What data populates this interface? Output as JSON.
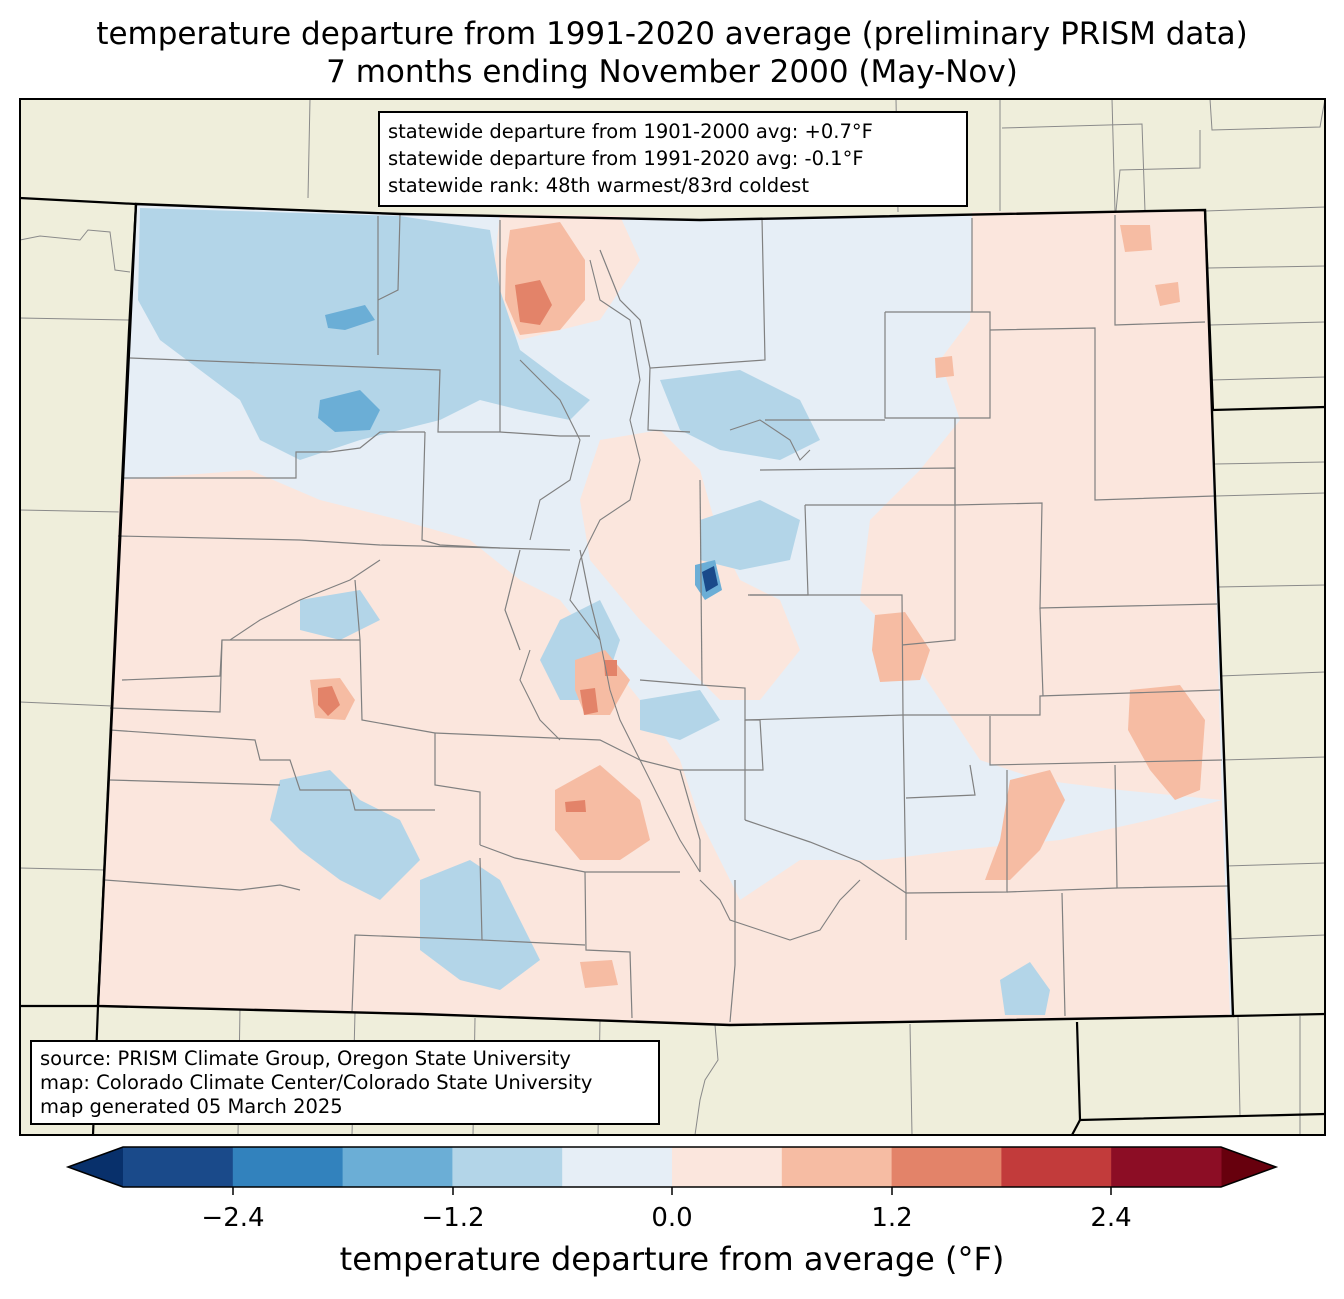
{
  "title": {
    "line1": "temperature departure from 1991-2020 average (preliminary PRISM data)",
    "line2": "7 months ending November 2000 (May-Nov)"
  },
  "stats": {
    "line1": "statewide departure from 1901-2000 avg: +0.7°F",
    "line2": "statewide departure from 1991-2020 avg: -0.1°F",
    "line3": "statewide rank: 48th warmest/83rd coldest"
  },
  "source": {
    "line1": "source: PRISM Climate Group, Oregon State University",
    "line2": "map: Colorado Climate Center/Colorado State University",
    "line3": "map generated 05 March 2025"
  },
  "colorbar": {
    "label": "temperature departure from average (°F)",
    "ticks": [
      "−2.4",
      "−1.2",
      "0.0",
      "1.2",
      "2.4"
    ],
    "bins": [
      "#08306b",
      "#1a4a8a",
      "#3282bd",
      "#6baed6",
      "#b3d5e8",
      "#e6eef6",
      "#fbe6dd",
      "#f6bca3",
      "#e38369",
      "#c23b3b",
      "#8c0d25",
      "#67000d"
    ]
  },
  "colors": {
    "land": "#efeedb",
    "map_frame": "#000000",
    "county_lines": "#808080"
  }
}
